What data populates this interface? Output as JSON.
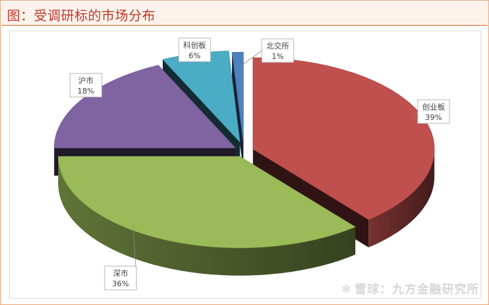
{
  "title": "图：受调研标的市场分布",
  "watermark": {
    "icon": "snowball-logo-icon",
    "text": "雪球：九方金融研究所"
  },
  "chart_data": {
    "type": "pie",
    "title": "",
    "legend": "none",
    "slices": [
      {
        "name": "创业板",
        "value": 39,
        "label": "39%",
        "color": "#c0504d"
      },
      {
        "name": "深市",
        "value": 36,
        "label": "36%",
        "color": "#9bbb59"
      },
      {
        "name": "沪市",
        "value": 18,
        "label": "18%",
        "color": "#8064a2"
      },
      {
        "name": "科创板",
        "value": 6,
        "label": "6%",
        "color": "#4bacc6"
      },
      {
        "name": "北交所",
        "value": 1,
        "label": "1%",
        "color": "#4f81bd"
      }
    ]
  }
}
